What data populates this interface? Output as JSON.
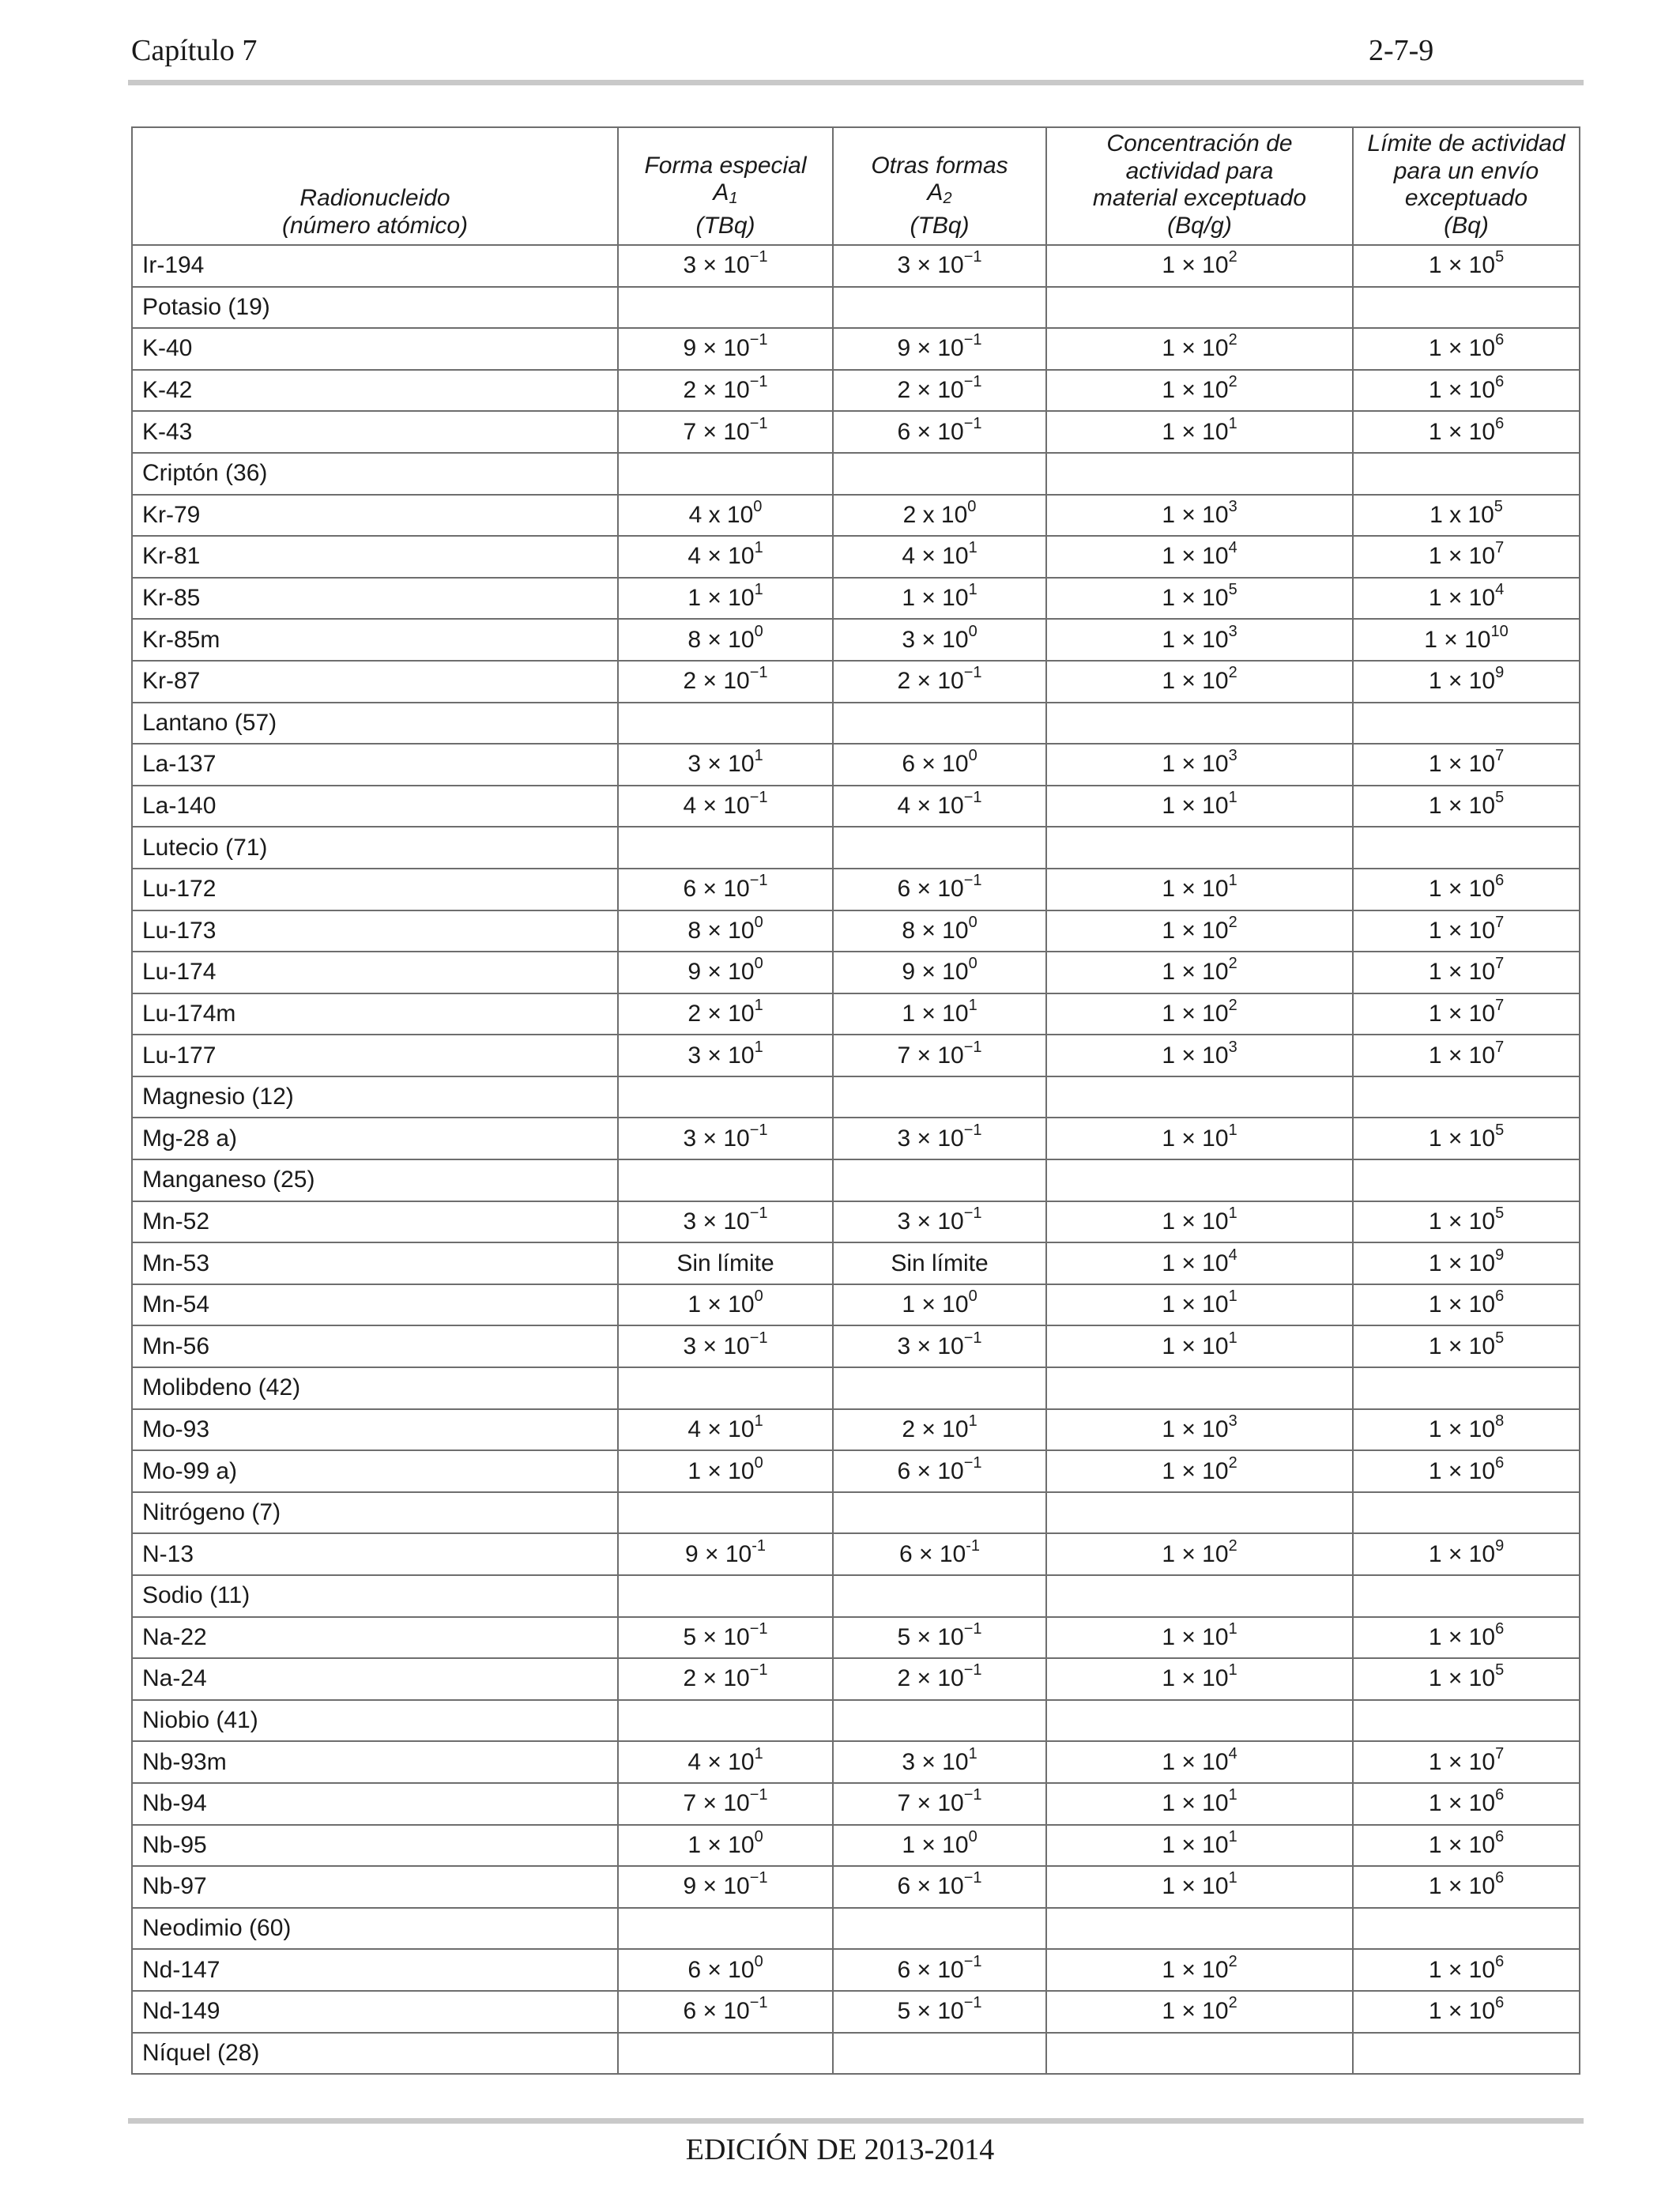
{
  "header": {
    "chapter": "Capítulo 7",
    "page": "2-7-9"
  },
  "table": {
    "headers": {
      "nuclide_1": "Radionucleido",
      "nuclide_2": "(número atómico)",
      "a1_1": "Forma especial",
      "a1_sym": "A",
      "a1_sub": "1",
      "a1_unit": "(TBq)",
      "a2_1": "Otras formas",
      "a2_sym": "A",
      "a2_sub": "2",
      "a2_unit": "(TBq)",
      "conc_1": "Concentración de",
      "conc_2": "actividad para",
      "conc_3": "material exceptuado",
      "conc_4": "(Bq/g)",
      "lim_1": "Límite de actividad",
      "lim_2": "para un envío",
      "lim_3": "exceptuado",
      "lim_4": "(Bq)"
    },
    "rows": [
      [
        "Ir-194",
        "3 × 10^−1",
        "3 × 10^−1",
        "1 × 10^2",
        "1 × 10^5"
      ],
      [
        "Potasio (19)",
        "",
        "",
        "",
        ""
      ],
      [
        "K-40",
        "9 × 10^−1",
        "9 × 10^−1",
        "1 × 10^2",
        "1 × 10^6"
      ],
      [
        "K-42",
        "2 × 10^−1",
        "2 × 10^−1",
        "1 × 10^2",
        "1 × 10^6"
      ],
      [
        "K-43",
        "7 × 10^−1",
        "6 × 10^−1",
        "1 × 10^1",
        "1 × 10^6"
      ],
      [
        "Criptón (36)",
        "",
        "",
        "",
        ""
      ],
      [
        "Kr-79",
        "4 x 10^0",
        "2 x 10^0",
        "1 × 10^3",
        "1 x 10^5"
      ],
      [
        "Kr-81",
        "4 × 10^1",
        "4 × 10^1",
        "1 × 10^4",
        "1 × 10^7"
      ],
      [
        "Kr-85",
        "1 × 10^1",
        "1 × 10^1",
        "1 × 10^5",
        "1 × 10^4"
      ],
      [
        "Kr-85m",
        "8 × 10^0",
        "3 × 10^0",
        "1 × 10^3",
        "1 × 10^10"
      ],
      [
        "Kr-87",
        "2 × 10^−1",
        "2 × 10^−1",
        "1 × 10^2",
        "1 × 10^9"
      ],
      [
        "Lantano (57)",
        "",
        "",
        "",
        ""
      ],
      [
        "La-137",
        "3 × 10^1",
        "6 × 10^0",
        "1 × 10^3",
        "1 × 10^7"
      ],
      [
        "La-140",
        "4 × 10^−1",
        "4 × 10^−1",
        "1 × 10^1",
        "1 × 10^5"
      ],
      [
        "Lutecio (71)",
        "",
        "",
        "",
        ""
      ],
      [
        "Lu-172",
        "6 × 10^−1",
        "6 × 10^−1",
        "1 × 10^1",
        "1 × 10^6"
      ],
      [
        "Lu-173",
        "8 × 10^0",
        "8 × 10^0",
        "1 × 10^2",
        "1 × 10^7"
      ],
      [
        "Lu-174",
        "9 × 10^0",
        "9 × 10^0",
        "1 × 10^2",
        "1 × 10^7"
      ],
      [
        "Lu-174m",
        "2 × 10^1",
        "1 × 10^1",
        "1 × 10^2",
        "1 × 10^7"
      ],
      [
        "Lu-177",
        "3 × 10^1",
        "7 × 10^−1",
        "1 × 10^3",
        "1 × 10^7"
      ],
      [
        "Magnesio (12)",
        "",
        "",
        "",
        ""
      ],
      [
        "Mg-28 a)",
        "3 × 10^−1",
        "3 × 10^−1",
        "1 × 10^1",
        "1 × 10^5"
      ],
      [
        "Manganeso (25)",
        "",
        "",
        "",
        ""
      ],
      [
        "Mn-52",
        "3 × 10^−1",
        "3 × 10^−1",
        "1 × 10^1",
        "1 × 10^5"
      ],
      [
        "Mn-53",
        "Sin límite",
        "Sin límite",
        "1 × 10^4",
        "1 × 10^9"
      ],
      [
        "Mn-54",
        "1 × 10^0",
        "1 × 10^0",
        "1 × 10^1",
        "1 × 10^6"
      ],
      [
        "Mn-56",
        "3 × 10^−1",
        "3 × 10^−1",
        "1 × 10^1",
        "1 × 10^5"
      ],
      [
        "Molibdeno (42)",
        "",
        "",
        "",
        ""
      ],
      [
        "Mo-93",
        "4 × 10^1",
        "2 × 10^1",
        "1 × 10^3",
        "1 × 10^8"
      ],
      [
        "Mo-99 a)",
        "1 × 10^0",
        "6 × 10^−1",
        "1 × 10^2",
        "1 × 10^6"
      ],
      [
        "Nitrógeno (7)",
        "",
        "",
        "",
        ""
      ],
      [
        "N-13",
        "9 × 10^-1",
        "6 × 10^-1",
        "1 × 10^2",
        "1 × 10^9"
      ],
      [
        "Sodio (11)",
        "",
        "",
        "",
        ""
      ],
      [
        "Na-22",
        "5 × 10^−1",
        "5 × 10^−1",
        "1 × 10^1",
        "1 × 10^6"
      ],
      [
        "Na-24",
        "2 × 10^−1",
        "2 × 10^−1",
        "1 × 10^1",
        "1 × 10^5"
      ],
      [
        "Niobio (41)",
        "",
        "",
        "",
        ""
      ],
      [
        "Nb-93m",
        "4 × 10^1",
        "3 × 10^1",
        "1 × 10^4",
        "1 × 10^7"
      ],
      [
        "Nb-94",
        "7 × 10^−1",
        "7 × 10^−1",
        "1 × 10^1",
        "1 × 10^6"
      ],
      [
        "Nb-95",
        "1 × 10^0",
        "1 × 10^0",
        "1 × 10^1",
        "1 × 10^6"
      ],
      [
        "Nb-97",
        "9 × 10^−1",
        "6 × 10^−1",
        "1 × 10^1",
        "1 × 10^6"
      ],
      [
        "Neodimio (60)",
        "",
        "",
        "",
        ""
      ],
      [
        "Nd-147",
        "6 × 10^0",
        "6 × 10^−1",
        "1 × 10^2",
        "1 × 10^6"
      ],
      [
        "Nd-149",
        "6 × 10^−1",
        "5 × 10^−1",
        "1 × 10^2",
        "1 × 10^6"
      ],
      [
        "Níquel (28)",
        "",
        "",
        "",
        ""
      ]
    ]
  },
  "footer": {
    "edition": "EDICIÓN DE 2013-2014"
  }
}
